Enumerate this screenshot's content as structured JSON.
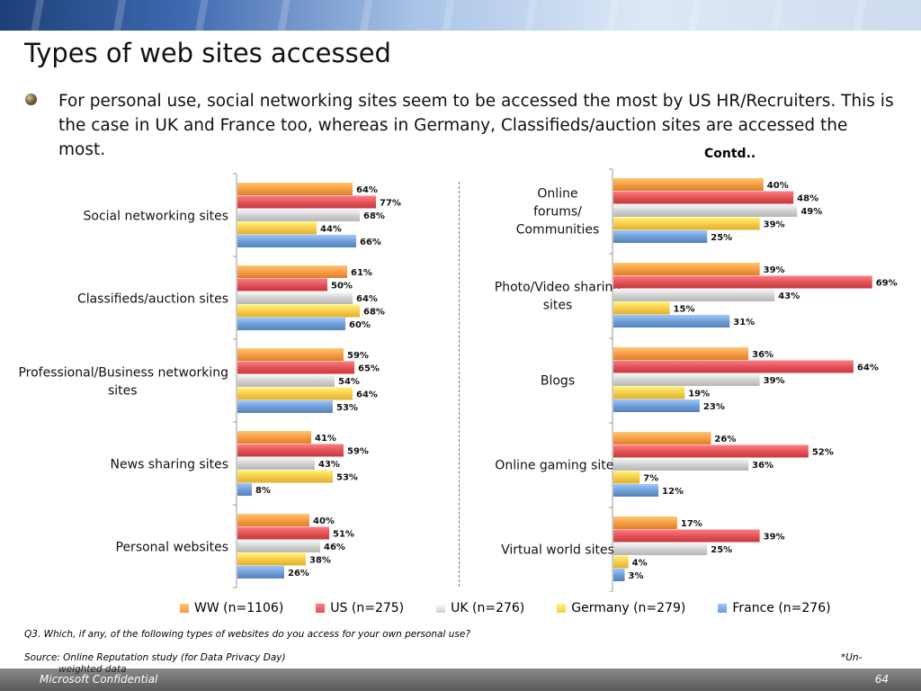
{
  "slide": {
    "title": "Types of web sites accessed",
    "bullet": "For personal use, social networking sites seem to be accessed the most by US HR/Recruiters. This is the case in UK and France too, whereas in Germany, Classifieds/auction sites are accessed the most.",
    "contd": "Contd..",
    "question": "Q3. Which, if any, of the following types of websites do you access for your own personal use?",
    "source": "Source: Online Reputation study (for Data Privacy Day)",
    "note": "*Un-",
    "note_cont": "weighted data",
    "footer_left": "Microsoft Confidential",
    "footer_right": "64"
  },
  "colors": {
    "WW": "#f59a43",
    "US": "#e05156",
    "UK": "#cfcfcf",
    "Germany": "#f6c949",
    "France": "#6f9bd3"
  },
  "legend": [
    {
      "label": "WW (n=1106)",
      "key": "WW"
    },
    {
      "label": "US (n=275)",
      "key": "US"
    },
    {
      "label": "UK (n=276)",
      "key": "UK"
    },
    {
      "label": "Germany (n=279)",
      "key": "Germany"
    },
    {
      "label": "France (n=276)",
      "key": "France"
    }
  ],
  "chart_data": [
    {
      "type": "bar",
      "orientation": "horizontal",
      "categories": [
        "Social networking sites",
        "Classifieds/auction sites",
        "Professional/Business networking sites",
        "News sharing sites",
        "Personal websites"
      ],
      "series": [
        {
          "name": "WW (n=1106)",
          "key": "WW",
          "values": [
            64,
            61,
            59,
            41,
            40
          ]
        },
        {
          "name": "US (n=275)",
          "key": "US",
          "values": [
            77,
            50,
            65,
            59,
            51
          ]
        },
        {
          "name": "UK (n=276)",
          "key": "UK",
          "values": [
            68,
            64,
            54,
            43,
            46
          ]
        },
        {
          "name": "Germany (n=279)",
          "key": "Germany",
          "values": [
            44,
            68,
            64,
            53,
            38
          ]
        },
        {
          "name": "France (n=276)",
          "key": "France",
          "values": [
            66,
            60,
            53,
            8,
            26
          ]
        }
      ],
      "value_suffix": "%"
    },
    {
      "type": "bar",
      "orientation": "horizontal",
      "categories": [
        "Online forums/ Communities",
        "Photo/Video sharing sites",
        "Blogs",
        "Online gaming sites",
        "Virtual world sites"
      ],
      "series": [
        {
          "name": "WW (n=1106)",
          "key": "WW",
          "values": [
            40,
            39,
            36,
            26,
            17
          ]
        },
        {
          "name": "US (n=275)",
          "key": "US",
          "values": [
            48,
            69,
            64,
            52,
            39
          ]
        },
        {
          "name": "UK (n=276)",
          "key": "UK",
          "values": [
            49,
            43,
            39,
            36,
            25
          ]
        },
        {
          "name": "Germany (n=279)",
          "key": "Germany",
          "values": [
            39,
            15,
            19,
            7,
            4
          ]
        },
        {
          "name": "France (n=276)",
          "key": "France",
          "values": [
            25,
            31,
            23,
            12,
            3
          ]
        }
      ],
      "value_suffix": "%"
    }
  ]
}
